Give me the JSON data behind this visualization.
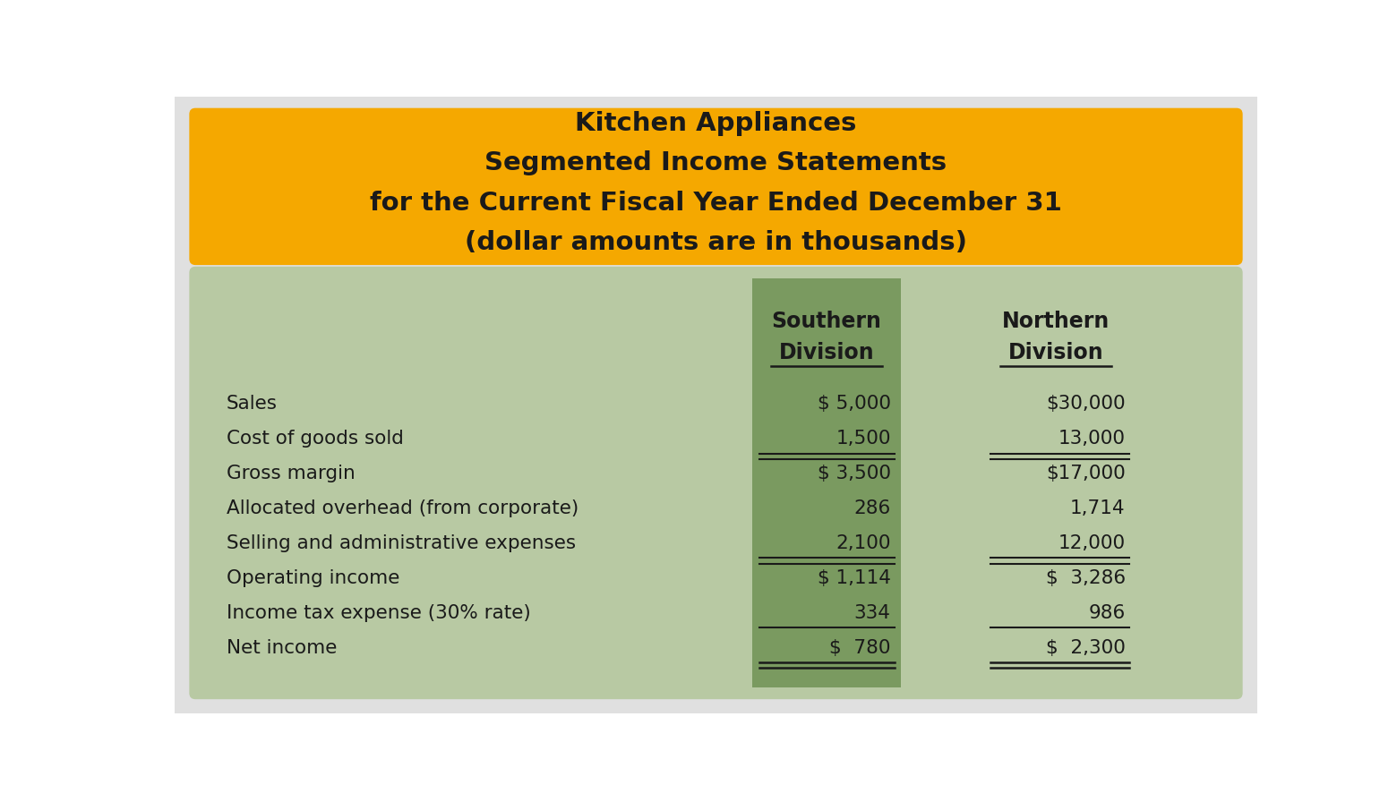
{
  "title_lines": [
    "Kitchen Appliances",
    "Segmented Income Statements",
    "for the Current Fiscal Year Ended December 31",
    "(dollar amounts are in thousands)"
  ],
  "header_bg": "#F5A800",
  "table_bg_light": "#B8C9A3",
  "table_bg_dark": "#7A9A60",
  "outer_bg": "#E8E8E8",
  "row_labels": [
    "Sales",
    "Cost of goods sold",
    "Gross margin",
    "Allocated overhead (from corporate)",
    "Selling and administrative expenses",
    "Operating income",
    "Income tax expense (30% rate)",
    "Net income"
  ],
  "southern_values": [
    "$ 5,000",
    "1,500",
    "$ 3,500",
    "286",
    "2,100",
    "$ 1,114",
    "334",
    "$  780"
  ],
  "northern_values": [
    "$30,000",
    "13,000",
    "$17,000",
    "1,714",
    "12,000",
    "$  3,286",
    "986",
    "$  2,300"
  ],
  "single_underline_rows": [
    1,
    4,
    6
  ],
  "double_underline_rows": [
    7
  ],
  "subtotal_rows": [
    2,
    5
  ]
}
